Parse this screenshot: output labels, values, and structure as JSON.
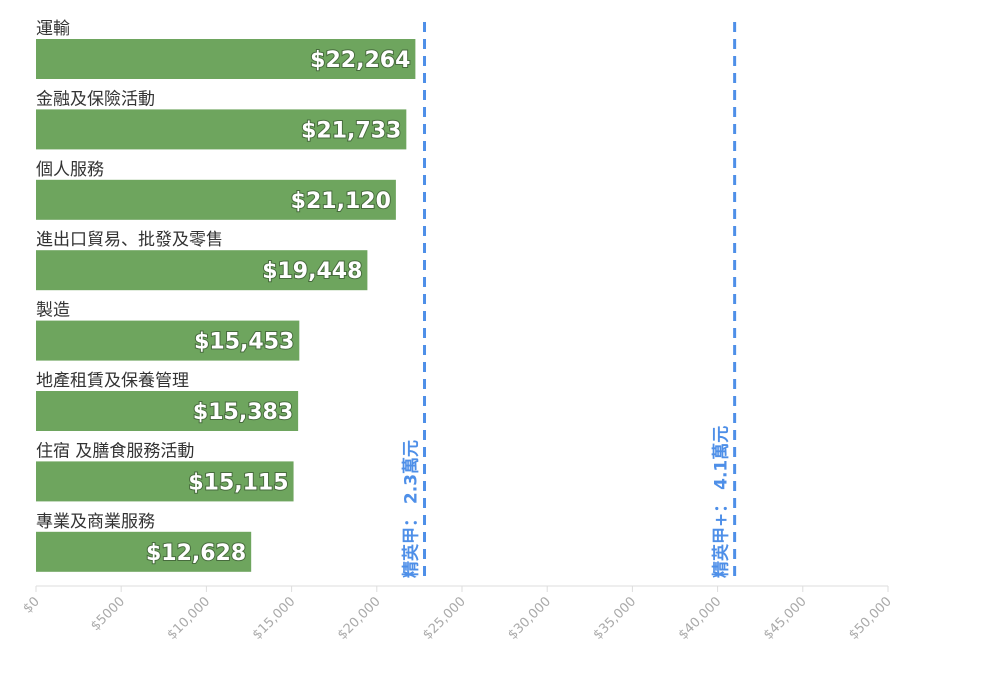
{
  "chart_data": {
    "type": "bar",
    "orientation": "horizontal",
    "categories": [
      "運輸",
      "金融及保險活動",
      "個人服務",
      "進出口貿易、批發及零售",
      "製造",
      "地產租賃及保養管理",
      "住宿 及膳食服務活動",
      "專業及商業服務"
    ],
    "values": [
      22264,
      21733,
      21120,
      19448,
      15453,
      15383,
      15115,
      12628
    ],
    "value_labels": [
      "$22,264",
      "$21,733",
      "$21,120",
      "$19,448",
      "$15,453",
      "$15,383",
      "$15,115",
      "$12,628"
    ],
    "color": "#6ea55e",
    "xlim": [
      0,
      50000
    ],
    "xticks": [
      {
        "value": 0,
        "label": "$0"
      },
      {
        "value": 5000,
        "label": "$5000"
      },
      {
        "value": 10000,
        "label": "$10,000"
      },
      {
        "value": 15000,
        "label": "$15,000"
      },
      {
        "value": 20000,
        "label": "$20,000"
      },
      {
        "value": 25000,
        "label": "$25,000"
      },
      {
        "value": 30000,
        "label": "$30,000"
      },
      {
        "value": 35000,
        "label": "$35,000"
      },
      {
        "value": 40000,
        "label": "$40,000"
      },
      {
        "value": 45000,
        "label": "$45,000"
      },
      {
        "value": 50000,
        "label": "$50,000"
      }
    ],
    "reference_lines": [
      {
        "value": 22800,
        "label": "精英甲： 2.3萬元"
      },
      {
        "value": 41000,
        "label": "精英甲+： 4.1萬元"
      }
    ],
    "reference_color": "#4e8fe8"
  }
}
